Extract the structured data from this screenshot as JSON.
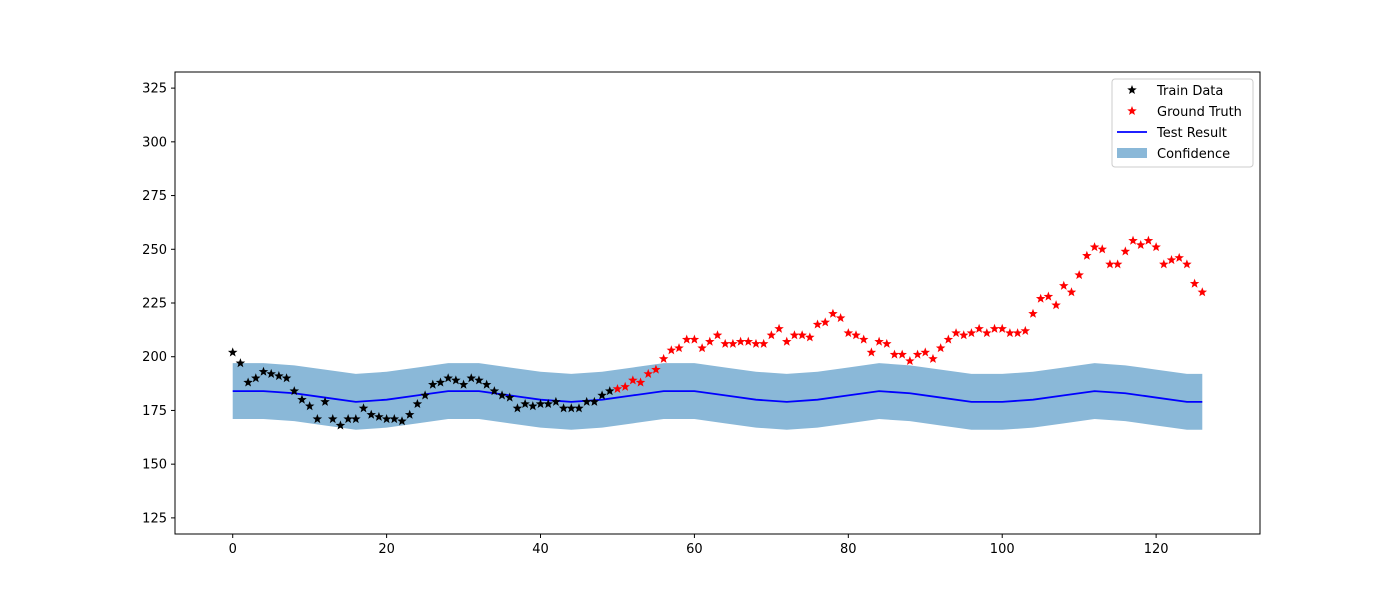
{
  "chart_data": {
    "type": "line",
    "title": "",
    "xlabel": "",
    "ylabel": "",
    "xlim": [
      -7.5,
      133.5
    ],
    "ylim": [
      117.5,
      332.5
    ],
    "xticks": [
      0,
      20,
      40,
      60,
      80,
      100,
      120
    ],
    "yticks": [
      125,
      150,
      175,
      200,
      225,
      250,
      275,
      300,
      325
    ],
    "grid": false,
    "legend_position": "upper-right",
    "series": [
      {
        "name": "Train Data",
        "kind": "scatter",
        "marker": "star",
        "color": "#000000",
        "x": [
          0,
          1,
          2,
          3,
          4,
          5,
          6,
          7,
          8,
          9,
          10,
          11,
          12,
          13,
          14,
          15,
          16,
          17,
          18,
          19,
          20,
          21,
          22,
          23,
          24,
          25,
          26,
          27,
          28,
          29,
          30,
          31,
          32,
          33,
          34,
          35,
          36,
          37,
          38,
          39,
          40,
          41,
          42,
          43,
          44,
          45,
          46,
          47,
          48,
          49
        ],
        "y": [
          202,
          197,
          188,
          190,
          193,
          192,
          191,
          190,
          184,
          180,
          177,
          171,
          179,
          171,
          168,
          171,
          171,
          176,
          173,
          172,
          171,
          171,
          170,
          173,
          178,
          182,
          187,
          188,
          190,
          189,
          187,
          190,
          189,
          187,
          184,
          182,
          181,
          176,
          178,
          177,
          178,
          178,
          179,
          176,
          176,
          176,
          179,
          179,
          182,
          184
        ]
      },
      {
        "name": "Ground Truth",
        "kind": "scatter",
        "marker": "star",
        "color": "#ff0000",
        "x": [
          50,
          51,
          52,
          53,
          54,
          55,
          56,
          57,
          58,
          59,
          60,
          61,
          62,
          63,
          64,
          65,
          66,
          67,
          68,
          69,
          70,
          71,
          72,
          73,
          74,
          75,
          76,
          77,
          78,
          79,
          80,
          81,
          82,
          83,
          84,
          85,
          86,
          87,
          88,
          89,
          90,
          91,
          92,
          93,
          94,
          95,
          96,
          97,
          98,
          99,
          100,
          101,
          102,
          103,
          104,
          105,
          106,
          107,
          108,
          109,
          110,
          111,
          112,
          113,
          114,
          115,
          116,
          117,
          118,
          119,
          120,
          121,
          122,
          123,
          124,
          125,
          126
        ],
        "y": [
          185,
          186,
          189,
          188,
          192,
          194,
          199,
          203,
          204,
          208,
          208,
          204,
          207,
          210,
          206,
          206,
          207,
          207,
          206,
          206,
          210,
          213,
          207,
          210,
          210,
          209,
          215,
          216,
          220,
          218,
          211,
          210,
          208,
          202,
          207,
          206,
          201,
          201,
          198,
          201,
          202,
          199,
          204,
          208,
          211,
          210,
          211,
          213,
          211,
          213,
          213,
          211,
          211,
          212,
          220,
          227,
          228,
          224,
          233,
          230,
          238,
          247,
          251,
          250,
          243,
          243,
          249,
          254,
          252,
          254,
          251,
          243,
          245,
          246,
          243,
          234,
          230
        ]
      },
      {
        "name": "Test Result",
        "kind": "line",
        "color": "#0000ff",
        "x": [
          0,
          4,
          8,
          12,
          16,
          20,
          24,
          28,
          32,
          36,
          40,
          44,
          48,
          52,
          56,
          60,
          64,
          68,
          72,
          76,
          80,
          84,
          88,
          92,
          96,
          100,
          104,
          108,
          112,
          116,
          120,
          124,
          126
        ],
        "y": [
          184,
          184,
          183,
          181,
          179,
          180,
          182,
          184,
          184,
          182,
          180,
          179,
          180,
          182,
          184,
          184,
          182,
          180,
          179,
          180,
          182,
          184,
          183,
          181,
          179,
          179,
          180,
          182,
          184,
          183,
          181,
          179,
          179
        ]
      },
      {
        "name": "Confidence",
        "kind": "band",
        "color": "#8ab8d8",
        "x": [
          0,
          4,
          8,
          12,
          16,
          20,
          24,
          28,
          32,
          36,
          40,
          44,
          48,
          52,
          56,
          60,
          64,
          68,
          72,
          76,
          80,
          84,
          88,
          92,
          96,
          100,
          104,
          108,
          112,
          116,
          120,
          124,
          126
        ],
        "y_upper": [
          197,
          197,
          196,
          194,
          192,
          193,
          195,
          197,
          197,
          195,
          193,
          192,
          193,
          195,
          197,
          197,
          195,
          193,
          192,
          193,
          195,
          197,
          196,
          194,
          192,
          192,
          193,
          195,
          197,
          196,
          194,
          192,
          192
        ],
        "y_lower": [
          171,
          171,
          170,
          168,
          166,
          167,
          169,
          171,
          171,
          169,
          167,
          166,
          167,
          169,
          171,
          171,
          169,
          167,
          166,
          167,
          169,
          171,
          170,
          168,
          166,
          166,
          167,
          169,
          171,
          170,
          168,
          166,
          166
        ]
      }
    ]
  }
}
